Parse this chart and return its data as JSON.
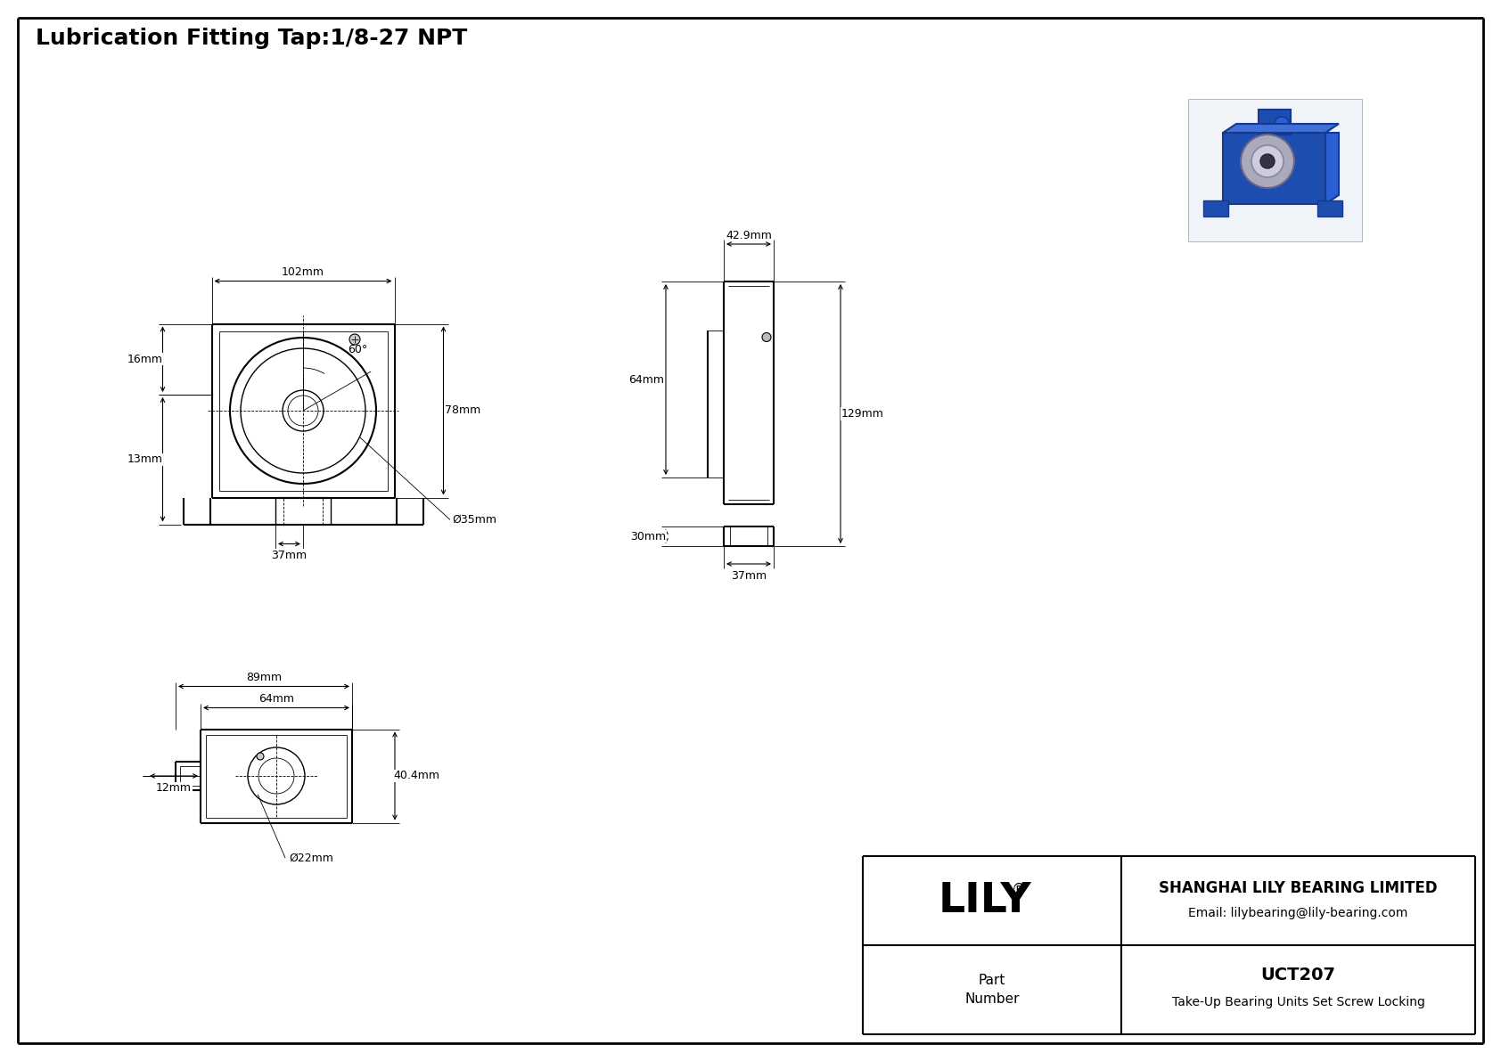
{
  "title": "Lubrication Fitting Tap:1/8-27 NPT",
  "bg_color": "#ffffff",
  "border_color": "#000000",
  "line_color": "#000000",
  "company": "SHANGHAI LILY BEARING LIMITED",
  "email": "Email: lilybearing@lily-bearing.com",
  "part_label": "Part\nNumber",
  "part_number": "UCT207",
  "part_desc": "Take-Up Bearing Units Set Screw Locking",
  "logo": "LILY",
  "logo_sup": "®",
  "dim_102": "102mm",
  "dim_42p9": "42.9mm",
  "dim_64": "64mm",
  "dim_129": "129mm",
  "dim_16": "16mm",
  "dim_13": "13mm",
  "dim_78": "78mm",
  "dim_35": "Ø35mm",
  "dim_37a": "37mm",
  "dim_37b": "37mm",
  "dim_30": "30mm",
  "dim_60": "60°",
  "dim_89": "89mm",
  "dim_64b": "64mm",
  "dim_40p4": "40.4mm",
  "dim_12": "12mm",
  "dim_22": "Ø22mm"
}
